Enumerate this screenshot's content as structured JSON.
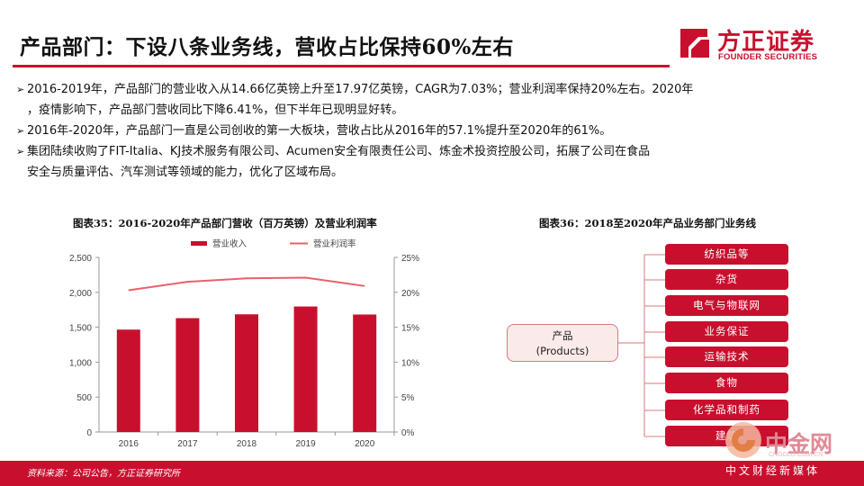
{
  "header": {
    "title": "产品部门：下设八条业务线，营收占比保持60%左右",
    "logo_cn": "方正证券",
    "logo_en": "FOUNDER SECURITIES",
    "accent_color": "#c8102e"
  },
  "bullets": [
    {
      "mark": "➢",
      "text": "2016-2019年，产品部门的营业收入从14.66亿英镑上升至17.97亿英镑，CAGR为7.03%；营业利润率保持20%左右。2020年"
    },
    {
      "mark": "",
      "text": "，疫情影响下，产品部门营收同比下降6.41%，但下半年已现明显好转。"
    },
    {
      "mark": "➢",
      "text": "2016年-2020年，产品部门一直是公司创收的第一大板块，营收占比从2016年的57.1%提升至2020年的61%。"
    },
    {
      "mark": "➢",
      "text": "集团陆续收购了FIT-Italia、KJ技术服务有限公司、Acumen安全有限责任公司、炼金术投资控股公司，拓展了公司在食品"
    },
    {
      "mark": "",
      "text": "安全与质量评估、汽车测试等领域的能力，优化了区域布局。"
    }
  ],
  "chart_title": "图表35：2016-2020年产品部门营收（百万英镑）及营业利润率",
  "chart_data": {
    "type": "bar",
    "categories": [
      "2016",
      "2017",
      "2018",
      "2019",
      "2020"
    ],
    "series": [
      {
        "name": "营业收入",
        "type": "bar",
        "axis": "left",
        "color": "#c8102e",
        "values": [
          1466,
          1630,
          1685,
          1797,
          1682
        ]
      },
      {
        "name": "营业利润率",
        "type": "line",
        "axis": "right",
        "color": "#e8616a",
        "values": [
          0.203,
          0.215,
          0.22,
          0.221,
          0.209
        ]
      }
    ],
    "y_left": {
      "min": 0,
      "max": 2500,
      "ticks": [
        "0",
        "500",
        "1,000",
        "1,500",
        "2,000",
        "2,500"
      ]
    },
    "y_right": {
      "min": 0,
      "max": 0.25,
      "ticks": [
        "0%",
        "5%",
        "10%",
        "15%",
        "20%",
        "25%"
      ]
    },
    "legend_position": "top",
    "grid": false
  },
  "tree_title": "图表36：2018至2020年产品业务部门业务线",
  "tree": {
    "root_line1": "产品",
    "root_line2": "(Products)",
    "leaves": [
      "纺织品等",
      "杂货",
      "电气与物联网",
      "业务保证",
      "运输技术",
      "食物",
      "化学品和制药",
      "建筑"
    ]
  },
  "footer": {
    "source": "资料来源：公司公告，方正证券研究所",
    "watermark_cn": "中金网",
    "watermark_url": "CNGOLD.COM.CN",
    "watermark_sub": "中文财经新媒体"
  }
}
